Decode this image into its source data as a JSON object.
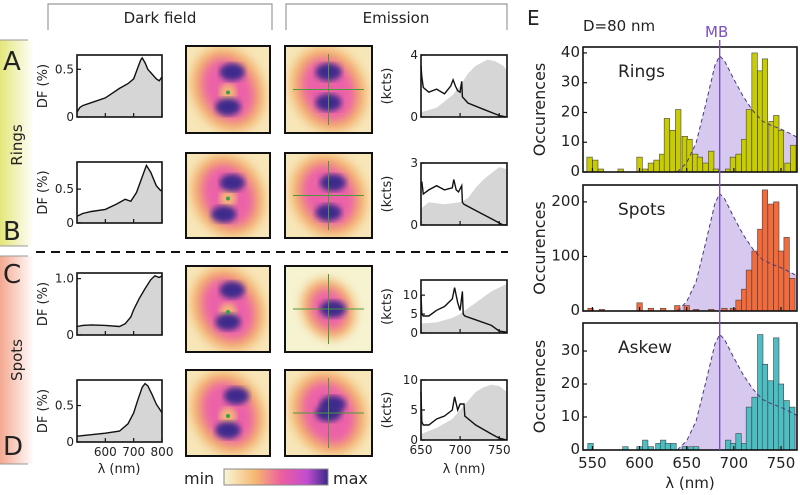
{
  "headers": {
    "dark_field": "Dark field",
    "emission": "Emission"
  },
  "groups": {
    "rings": "Rings",
    "spots": "Spots"
  },
  "panel_letters": {
    "A": "A",
    "B": "B",
    "C": "C",
    "D": "D",
    "E": "E"
  },
  "colors": {
    "rings_bar": "#c9cc00",
    "spots_bar": "#f46a3a",
    "askew_bar": "#4bbfc4",
    "mb": "#7b4fc0",
    "mb_fill": "#d6c8ef",
    "spectrum_fill": "#d6d6d6",
    "rings_side": "#e4e67a",
    "spots_side": "#f4a890"
  },
  "colorbar": {
    "min_label": "min",
    "max_label": "max",
    "colors": [
      "#f8f6d8",
      "#f6b870",
      "#ee5fa0",
      "#c14cd0",
      "#3a2a8a"
    ]
  },
  "df_axes": {
    "ylabel": "DF (%)",
    "xlabel": "λ (nm)",
    "xticks": [
      "600",
      "700",
      "800"
    ]
  },
  "em_axes": {
    "ylabel": "(kcts)",
    "xlabel": "λ (nm)",
    "xticks": [
      "650",
      "700",
      "750"
    ]
  },
  "hist_axes": {
    "ylabel": "Occurences",
    "xlabel": "λ (nm)",
    "xticks": [
      "550",
      "600",
      "650",
      "700",
      "750"
    ],
    "diameter_label": "D=80 nm",
    "mb_label": "MB"
  },
  "chart_data": [
    {
      "type": "area",
      "panel": "A",
      "kind": "dark-field",
      "xlim": [
        500,
        800
      ],
      "ylim": [
        0,
        0.65
      ],
      "yticks": [
        "0",
        "0.5"
      ],
      "ytick_values": [
        0,
        0.5
      ],
      "x": [
        500,
        510,
        520,
        550,
        600,
        650,
        680,
        700,
        715,
        725,
        730,
        740,
        750,
        765,
        780,
        790,
        800
      ],
      "y": [
        0.05,
        0.1,
        0.12,
        0.15,
        0.2,
        0.3,
        0.35,
        0.4,
        0.52,
        0.6,
        0.62,
        0.57,
        0.5,
        0.45,
        0.4,
        0.38,
        0.42
      ]
    },
    {
      "type": "area",
      "panel": "B",
      "kind": "dark-field",
      "xlim": [
        500,
        800
      ],
      "ylim": [
        0,
        0.9
      ],
      "yticks": [
        "0",
        "0.5"
      ],
      "ytick_values": [
        0,
        0.5
      ],
      "x": [
        500,
        520,
        550,
        600,
        640,
        670,
        690,
        710,
        730,
        745,
        760,
        780,
        795,
        800
      ],
      "y": [
        0.1,
        0.14,
        0.17,
        0.2,
        0.28,
        0.35,
        0.32,
        0.45,
        0.68,
        0.85,
        0.75,
        0.55,
        0.48,
        0.48
      ]
    },
    {
      "type": "area",
      "panel": "C",
      "kind": "dark-field",
      "xlim": [
        500,
        800
      ],
      "ylim": [
        0,
        1.1
      ],
      "yticks": [
        "0",
        "1.0"
      ],
      "ytick_values": [
        0,
        1.0
      ],
      "x": [
        500,
        520,
        550,
        600,
        650,
        670,
        690,
        700,
        720,
        740,
        760,
        775,
        790,
        800
      ],
      "y": [
        0.15,
        0.17,
        0.18,
        0.17,
        0.15,
        0.2,
        0.32,
        0.45,
        0.65,
        0.82,
        0.98,
        1.05,
        1.02,
        1.05
      ]
    },
    {
      "type": "area",
      "panel": "D",
      "kind": "dark-field",
      "xlim": [
        500,
        800
      ],
      "ylim": [
        0,
        0.85
      ],
      "yticks": [
        "0",
        "0.5"
      ],
      "ytick_values": [
        0,
        0.5
      ],
      "x": [
        500,
        550,
        600,
        650,
        680,
        700,
        715,
        730,
        740,
        750,
        765,
        780,
        800
      ],
      "y": [
        0.08,
        0.1,
        0.12,
        0.15,
        0.25,
        0.4,
        0.58,
        0.75,
        0.8,
        0.77,
        0.65,
        0.52,
        0.4
      ]
    },
    {
      "type": "line",
      "panel": "A",
      "kind": "emission",
      "xlim": [
        650,
        760
      ],
      "ylim": [
        0,
        4
      ],
      "yticks": [
        "0",
        "4"
      ],
      "ytick_values": [
        0,
        4
      ],
      "x": [
        650,
        651,
        653,
        660,
        670,
        680,
        688,
        691,
        694,
        697,
        700,
        702,
        703,
        710,
        730,
        750,
        760
      ],
      "y": [
        3.3,
        2.6,
        1.9,
        1.6,
        1.8,
        1.5,
        2.0,
        2.4,
        2.0,
        1.7,
        1.6,
        2.3,
        1.3,
        0.9,
        0.5,
        0.1,
        0.0
      ],
      "shaded": {
        "x": [
          650,
          670,
          690,
          700,
          710,
          720,
          735,
          745,
          755,
          760
        ],
        "y": [
          0.3,
          0.6,
          1.4,
          2.0,
          2.8,
          3.3,
          3.7,
          3.6,
          3.3,
          3.0
        ]
      }
    },
    {
      "type": "line",
      "panel": "B",
      "kind": "emission",
      "xlim": [
        650,
        760
      ],
      "ylim": [
        0,
        3
      ],
      "yticks": [
        "0",
        "3"
      ],
      "ytick_values": [
        0,
        3
      ],
      "x": [
        650,
        651,
        653,
        660,
        670,
        680,
        690,
        692,
        695,
        698,
        702,
        703,
        705,
        720,
        740,
        755,
        760
      ],
      "y": [
        2.0,
        2.1,
        1.5,
        1.7,
        1.9,
        1.7,
        1.8,
        2.2,
        1.7,
        1.6,
        1.9,
        1.1,
        1.0,
        0.7,
        0.3,
        0.0,
        0.0
      ],
      "shaded": {
        "x": [
          650,
          660,
          680,
          700,
          710,
          720,
          730,
          740,
          750,
          760
        ],
        "y": [
          0.8,
          1.1,
          1.0,
          1.1,
          1.3,
          1.8,
          2.2,
          2.5,
          2.8,
          2.7
        ]
      }
    },
    {
      "type": "line",
      "panel": "C",
      "kind": "emission",
      "xlim": [
        650,
        760
      ],
      "ylim": [
        0,
        14
      ],
      "yticks": [
        "0",
        "5",
        "10"
      ],
      "ytick_values": [
        0,
        5,
        10
      ],
      "x": [
        650,
        651,
        653,
        660,
        670,
        680,
        690,
        693,
        697,
        700,
        703,
        704,
        706,
        720,
        740,
        750,
        760
      ],
      "y": [
        10,
        5,
        4.5,
        4.5,
        6,
        7,
        9,
        12,
        8,
        6,
        11,
        5,
        4.5,
        3.5,
        2,
        0.5,
        0.2
      ],
      "shaded": {
        "x": [
          650,
          670,
          690,
          700,
          710,
          720,
          740,
          760
        ],
        "y": [
          2.5,
          2.8,
          4,
          5,
          6.5,
          8,
          11,
          13
        ]
      }
    },
    {
      "type": "line",
      "panel": "D",
      "kind": "emission",
      "xlim": [
        650,
        760
      ],
      "ylim": [
        0,
        10
      ],
      "yticks": [
        "0",
        "5",
        "10"
      ],
      "ytick_values": [
        0,
        5,
        10
      ],
      "x": [
        650,
        651,
        653,
        660,
        670,
        680,
        690,
        693,
        697,
        700,
        702,
        705,
        706,
        720,
        740,
        750,
        760
      ],
      "y": [
        8,
        3,
        2.5,
        2.5,
        3.5,
        4,
        5,
        7.2,
        5,
        6,
        6,
        6,
        4,
        2.5,
        1,
        0.3,
        0
      ],
      "shaded": {
        "x": [
          650,
          670,
          690,
          700,
          710,
          720,
          730,
          740,
          750,
          760
        ],
        "y": [
          1,
          2,
          3.5,
          5,
          6.5,
          8,
          8.8,
          9.2,
          9,
          8
        ]
      }
    },
    {
      "type": "bar",
      "panel": "E",
      "kind": "histogram",
      "title": "Rings",
      "xlim": [
        540,
        767
      ],
      "ylim": [
        0,
        42
      ],
      "yticks": [
        "0",
        "10",
        "20",
        "30",
        "40"
      ],
      "ytick_values": [
        0,
        10,
        20,
        30,
        40
      ],
      "mb_peak": 39,
      "x": [
        547,
        553,
        559,
        580,
        600,
        606,
        612,
        618,
        624,
        629,
        635,
        641,
        648,
        653,
        659,
        664,
        670,
        676,
        681,
        694,
        699,
        705,
        711,
        716,
        722,
        728,
        733,
        740,
        745,
        750,
        757,
        763
      ],
      "values": [
        5,
        4,
        1,
        1,
        5,
        1,
        3,
        4,
        6,
        18,
        14,
        21,
        12,
        11,
        6,
        5,
        3,
        7,
        1,
        1,
        5,
        6,
        11,
        21,
        40,
        34,
        38,
        17,
        19,
        14,
        3,
        9
      ]
    },
    {
      "type": "bar",
      "panel": "E",
      "kind": "histogram",
      "title": "Spots",
      "xlim": [
        540,
        767
      ],
      "ylim": [
        0,
        231
      ],
      "yticks": [
        "0",
        "100",
        "200"
      ],
      "ytick_values": [
        0,
        100,
        200
      ],
      "mb_peak": 215,
      "x": [
        548,
        560,
        600,
        612,
        625,
        640,
        650,
        660,
        676,
        690,
        699,
        705,
        711,
        716,
        722,
        728,
        733,
        739,
        745,
        750,
        756,
        762
      ],
      "values": [
        5,
        3,
        15,
        5,
        5,
        10,
        10,
        3,
        3,
        5,
        5,
        20,
        40,
        75,
        110,
        150,
        222,
        196,
        200,
        110,
        135,
        60
      ]
    },
    {
      "type": "bar",
      "panel": "E",
      "kind": "histogram",
      "title": "Askew",
      "xlim": [
        540,
        767
      ],
      "ylim": [
        0,
        38.5
      ],
      "yticks": [
        "0",
        "10",
        "20",
        "30"
      ],
      "ytick_values": [
        0,
        10,
        20,
        30
      ],
      "mb_peak": 35,
      "x": [
        548,
        585,
        600,
        606,
        612,
        620,
        625,
        630,
        636,
        648,
        655,
        660,
        694,
        699,
        705,
        711,
        716,
        722,
        728,
        733,
        739,
        745,
        750,
        756,
        762
      ],
      "values": [
        2,
        1,
        1,
        3,
        1,
        2,
        3,
        2,
        2,
        1,
        1,
        1,
        3,
        2,
        5,
        2,
        13,
        16,
        35,
        26,
        21,
        34,
        20,
        15,
        13
      ]
    },
    {
      "type": "line",
      "panel": "E",
      "kind": "mb-reference",
      "mb_wavelength": 685,
      "x": [
        640,
        650,
        660,
        670,
        680,
        685,
        690,
        700,
        710,
        720,
        730,
        740,
        750,
        760,
        767
      ],
      "y": [
        0,
        0.08,
        0.25,
        0.58,
        0.92,
        1,
        0.96,
        0.8,
        0.65,
        0.53,
        0.44,
        0.4,
        0.37,
        0.33,
        0.3
      ]
    }
  ]
}
